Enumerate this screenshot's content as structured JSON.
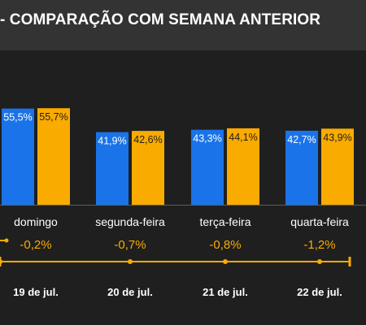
{
  "title": "- COMPARAÇÃO COM SEMANA ANTERIOR",
  "colors": {
    "background": "#1f1f1f",
    "title_bar": "#333333",
    "current_week": "#1a73e8",
    "previous_week": "#f9ab00",
    "delta_line": "#f9ab00",
    "text_light": "#ffffff",
    "text_muted": "#d9d9d9"
  },
  "chart_data": {
    "type": "bar",
    "categories": [
      "domingo",
      "segunda-feira",
      "terça-feira",
      "quarta-feira"
    ],
    "series": [
      {
        "values": [
          55.5,
          41.9,
          43.3,
          42.7
        ],
        "labels": [
          "55,5%",
          "41,9%",
          "43,3%",
          "42,7%"
        ],
        "color": "#1a73e8"
      },
      {
        "values": [
          55.7,
          42.6,
          44.1,
          43.9
        ],
        "labels": [
          "55,7%",
          "42,6%",
          "44,1%",
          "43,9%"
        ],
        "color": "#f9ab00"
      }
    ],
    "ylim": [
      0,
      75
    ],
    "grid": false,
    "differences": [
      "-0,2%",
      "-0,7%",
      "-0,8%",
      "-1,2%"
    ],
    "dates": [
      "19 de jul.",
      "20 de jul.",
      "21 de jul.",
      "22 de jul."
    ]
  }
}
